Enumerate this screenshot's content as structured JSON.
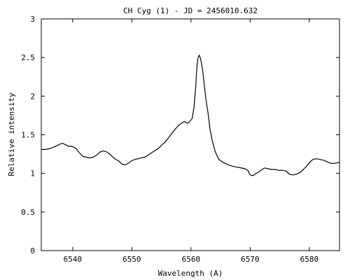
{
  "chart_data": {
    "type": "line",
    "title": "CH Cyg (1) - JD = 2456010.632",
    "xlabel": "Wavelength (A)",
    "ylabel": "Relative intensity",
    "xlim": [
      6534.7,
      6585.1
    ],
    "ylim": [
      0,
      3
    ],
    "xticks": [
      6540,
      6550,
      6560,
      6570,
      6580
    ],
    "xtick_labels": [
      "6540",
      "6550",
      "6560",
      "6570",
      "6580"
    ],
    "yticks": [
      0,
      0.5,
      1,
      1.5,
      2,
      2.5,
      3
    ],
    "ytick_labels": [
      "0",
      "0.5",
      "1",
      "1.5",
      "2",
      "2.5",
      "3"
    ],
    "grid": false,
    "legend": "none",
    "line_color": "#000000",
    "series": [
      {
        "x": [
          6534.7,
          6535.3,
          6536.1,
          6536.8,
          6537.4,
          6537.9,
          6538.3,
          6538.8,
          6539.3,
          6539.8,
          6540.2,
          6540.6,
          6541.1,
          6541.7,
          6542.3,
          6542.9,
          6543.5,
          6544.1,
          6544.7,
          6545.2,
          6545.7,
          6546.3,
          6546.8,
          6547.3,
          6547.8,
          6548.3,
          6548.9,
          6549.4,
          6549.9,
          6550.5,
          6551.1,
          6551.6,
          6552.2,
          6552.8,
          6553.4,
          6554.0,
          6554.6,
          6555.1,
          6555.7,
          6556.2,
          6556.8,
          6557.3,
          6557.9,
          6558.4,
          6558.9,
          6559.4,
          6559.8,
          6560.2,
          6560.5,
          6560.8,
          6561.0,
          6561.2,
          6561.4,
          6561.6,
          6561.9,
          6562.2,
          6562.5,
          6562.9,
          6563.2,
          6563.6,
          6564.1,
          6564.7,
          6565.5,
          6566.3,
          6567.1,
          6567.8,
          6568.5,
          6569.1,
          6569.6,
          6570.0,
          6570.5,
          6571.0,
          6571.5,
          6572.0,
          6572.5,
          6573.0,
          6573.6,
          6574.2,
          6574.9,
          6575.6,
          6576.1,
          6576.6,
          6577.2,
          6577.8,
          6578.4,
          6579.0,
          6579.5,
          6580.0,
          6580.6,
          6581.2,
          6581.8,
          6582.4,
          6583.0,
          6583.6,
          6584.2,
          6585.1
        ],
        "y": [
          1.31,
          1.31,
          1.32,
          1.34,
          1.36,
          1.38,
          1.39,
          1.37,
          1.35,
          1.35,
          1.34,
          1.32,
          1.27,
          1.22,
          1.21,
          1.2,
          1.21,
          1.24,
          1.28,
          1.29,
          1.28,
          1.25,
          1.21,
          1.18,
          1.16,
          1.12,
          1.11,
          1.13,
          1.16,
          1.18,
          1.19,
          1.2,
          1.21,
          1.24,
          1.27,
          1.3,
          1.33,
          1.37,
          1.41,
          1.46,
          1.52,
          1.57,
          1.62,
          1.65,
          1.67,
          1.65,
          1.67,
          1.71,
          1.85,
          2.12,
          2.38,
          2.5,
          2.53,
          2.49,
          2.37,
          2.18,
          1.97,
          1.77,
          1.58,
          1.42,
          1.28,
          1.18,
          1.14,
          1.11,
          1.09,
          1.08,
          1.07,
          1.06,
          1.04,
          0.98,
          0.97,
          1.0,
          1.02,
          1.05,
          1.07,
          1.06,
          1.05,
          1.05,
          1.04,
          1.04,
          1.03,
          0.99,
          0.98,
          0.99,
          1.01,
          1.05,
          1.09,
          1.14,
          1.18,
          1.19,
          1.18,
          1.17,
          1.15,
          1.13,
          1.13,
          1.14
        ]
      }
    ]
  }
}
